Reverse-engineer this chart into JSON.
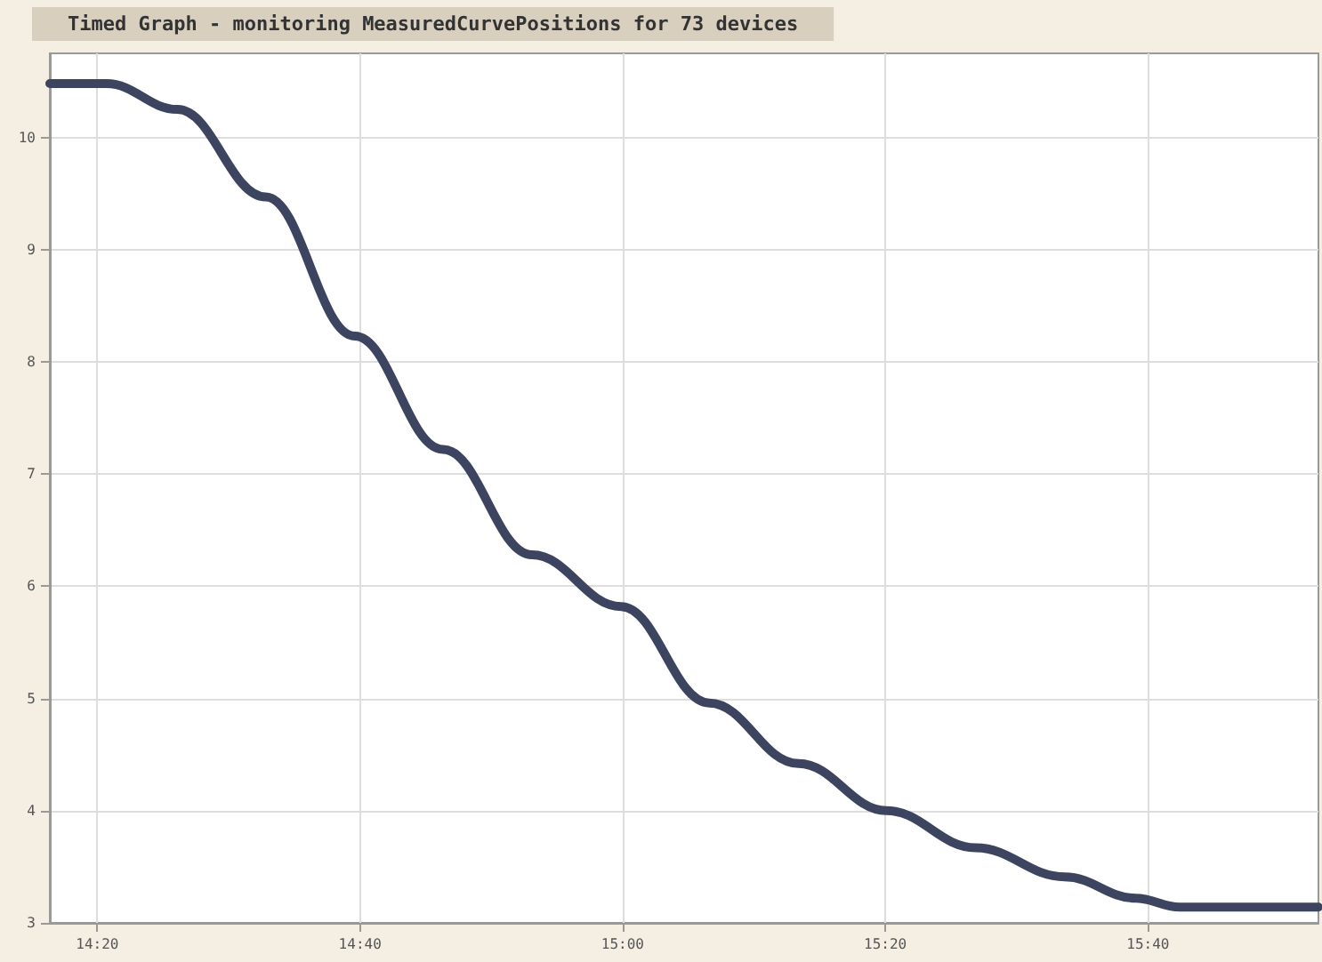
{
  "chart_data": {
    "type": "line",
    "title": "Timed Graph - monitoring MeasuredCurvePositions for 73 devices",
    "x": [
      14.273,
      14.345,
      14.435,
      14.547,
      14.66,
      14.772,
      14.885,
      14.998,
      15.11,
      15.223,
      15.335,
      15.448,
      15.561,
      15.651,
      15.707,
      15.883
    ],
    "series": [
      {
        "color": "#3d4460",
        "values": [
          10.48,
          10.48,
          10.25,
          9.47,
          8.23,
          7.22,
          6.28,
          5.82,
          4.96,
          4.42,
          4.0,
          3.67,
          3.41,
          3.22,
          3.14,
          3.14
        ]
      }
    ],
    "xlim": [
      14.273,
      15.883
    ],
    "xticks": [
      {
        "value": 14.3333,
        "label": "14:20"
      },
      {
        "value": 14.6667,
        "label": "14:40"
      },
      {
        "value": 15,
        "label": "15:00"
      },
      {
        "value": 15.3333,
        "label": "15:20"
      },
      {
        "value": 15.6667,
        "label": "15:40"
      }
    ],
    "ylim": [
      3,
      10.75
    ],
    "yticks": [
      3,
      4,
      5,
      6,
      7,
      8,
      9,
      10
    ],
    "grid": true,
    "marker": "none",
    "line_style": "solid"
  }
}
